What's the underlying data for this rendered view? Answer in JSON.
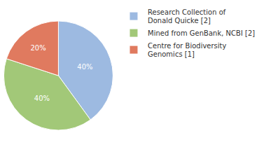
{
  "chart_data": {
    "type": "pie",
    "categories": [
      "Research Collection of Donald Quicke [2]",
      "Mined from GenBank, NCBI [2]",
      "Centre for Biodiversity Genomics [1]"
    ],
    "values": [
      40,
      40,
      20
    ],
    "value_labels": [
      "40%",
      "40%",
      "20%"
    ],
    "colors": [
      "#9dbae1",
      "#a2c878",
      "#e07a5f"
    ],
    "data_labels": true,
    "legend": "top right"
  }
}
